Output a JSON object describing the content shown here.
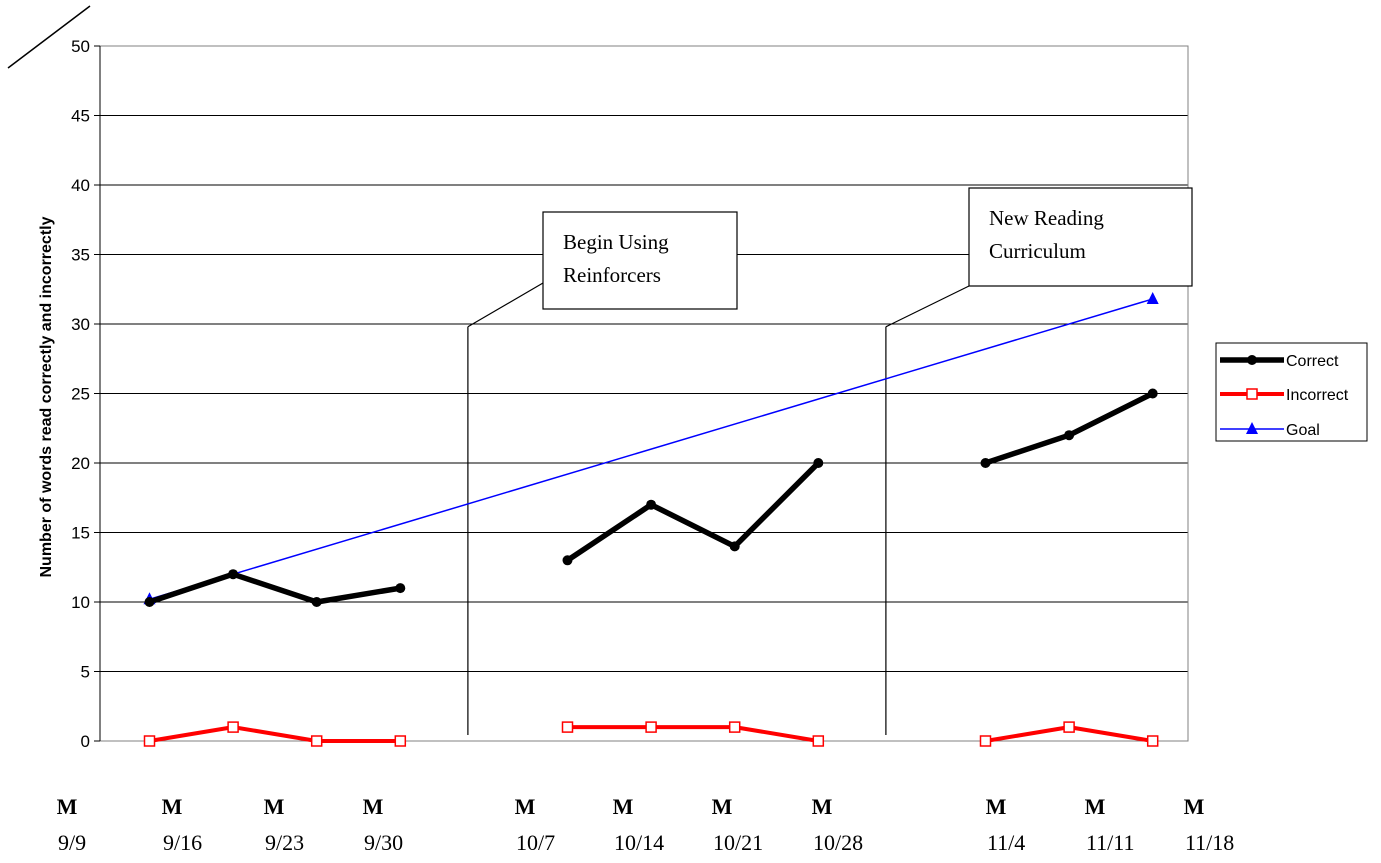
{
  "chart_data": {
    "type": "line",
    "title": "",
    "ylabel": "Number of words read correctly and incorrectly",
    "xlabel": "",
    "ylim": [
      0,
      50
    ],
    "yticks": [
      0,
      5,
      10,
      15,
      20,
      25,
      30,
      35,
      40,
      45,
      50
    ],
    "grid": true,
    "legend_position": "right",
    "x_weeks": [
      {
        "day": "M",
        "date": "9/9"
      },
      {
        "day": "M",
        "date": "9/16"
      },
      {
        "day": "M",
        "date": "9/23"
      },
      {
        "day": "M",
        "date": "9/30"
      },
      {
        "day": "M",
        "date": "10/7"
      },
      {
        "day": "M",
        "date": "10/14"
      },
      {
        "day": "M",
        "date": "10/21"
      },
      {
        "day": "M",
        "date": "10/28"
      },
      {
        "day": "M",
        "date": "11/4"
      },
      {
        "day": "M",
        "date": "11/11"
      },
      {
        "day": "M",
        "date": "11/18"
      }
    ],
    "categories": [
      1,
      2,
      3,
      4,
      6,
      7,
      8,
      9,
      11,
      12,
      13
    ],
    "series": [
      {
        "name": "Correct",
        "color": "#000000",
        "marker": "circle",
        "segments": [
          [
            [
              1,
              10
            ],
            [
              2,
              12
            ],
            [
              3,
              10
            ],
            [
              4,
              11
            ]
          ],
          [
            [
              6,
              13
            ],
            [
              7,
              17
            ],
            [
              8,
              14
            ],
            [
              9,
              20
            ]
          ],
          [
            [
              11,
              20
            ],
            [
              12,
              22
            ],
            [
              13,
              25
            ]
          ]
        ]
      },
      {
        "name": "Incorrect",
        "color": "#ff0000",
        "marker": "square-open",
        "segments": [
          [
            [
              1,
              0
            ],
            [
              2,
              1
            ],
            [
              3,
              0
            ],
            [
              4,
              0
            ]
          ],
          [
            [
              6,
              1
            ],
            [
              7,
              1
            ],
            [
              8,
              1
            ],
            [
              9,
              0
            ]
          ],
          [
            [
              11,
              0
            ],
            [
              12,
              1
            ],
            [
              13,
              0
            ]
          ]
        ]
      },
      {
        "name": "Goal",
        "color": "#0000ff",
        "marker": "triangle",
        "segments": [
          [
            [
              1,
              10.2
            ],
            [
              13,
              31.8
            ]
          ]
        ]
      }
    ],
    "phase_changes": [
      {
        "after_category": 5,
        "label_lines": [
          "Begin Using",
          "Reinforcers"
        ]
      },
      {
        "after_category": 10,
        "label_lines": [
          "New Reading",
          "Curriculum"
        ]
      }
    ]
  }
}
